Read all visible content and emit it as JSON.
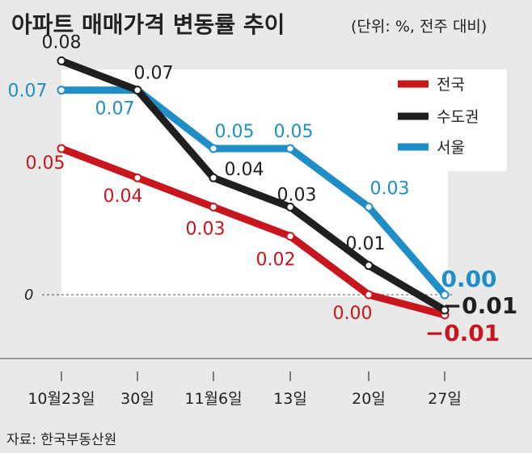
{
  "chart_data": {
    "type": "line",
    "title": "아파트 매매가격 변동률 추이",
    "unit_note": "(단위: %, 전주 대비)",
    "categories": [
      "10월23일",
      "30일",
      "11월6일",
      "13일",
      "20일",
      "27일"
    ],
    "zero_label": "0",
    "series": [
      {
        "name": "전국",
        "color": "#c8161e",
        "values": [
          0.05,
          0.04,
          0.03,
          0.02,
          0.0,
          -0.01
        ],
        "labels": [
          "0.05",
          "0.04",
          "0.03",
          "0.02",
          "0.00",
          "−0.01"
        ]
      },
      {
        "name": "수도권",
        "color": "#1f1f1f",
        "values": [
          0.08,
          0.07,
          0.04,
          0.03,
          0.01,
          -0.01
        ],
        "labels": [
          "0.08",
          "0.07",
          "0.04",
          "0.03",
          "0.01",
          "−0.01"
        ]
      },
      {
        "name": "서울",
        "color": "#1f8ec6",
        "values": [
          0.07,
          0.07,
          0.05,
          0.05,
          0.03,
          0.0
        ],
        "labels": [
          "0.07",
          "0.07",
          "0.05",
          "0.05",
          "0.03",
          "0.00"
        ]
      }
    ],
    "source": "자료: 한국부동산원"
  }
}
